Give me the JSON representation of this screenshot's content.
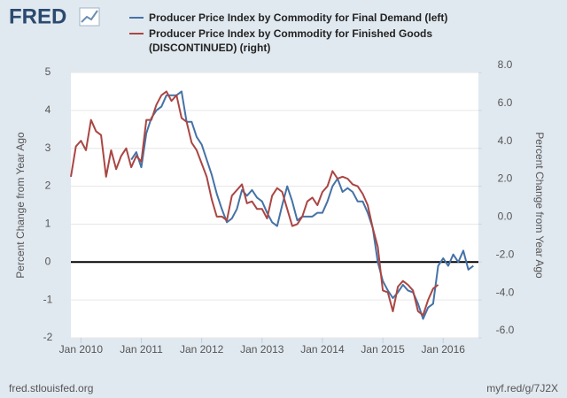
{
  "chart_data": {
    "type": "line",
    "logo": "FRED",
    "source": "fred.stlouisfed.org",
    "short_link": "myf.red/g/7J2X",
    "y_label": "Percent Change from Year Ago",
    "y2_label": "Percent Change from Year Ago",
    "x": [
      "2009-11",
      "2009-12",
      "2010-01",
      "2010-02",
      "2010-03",
      "2010-04",
      "2010-05",
      "2010-06",
      "2010-07",
      "2010-08",
      "2010-09",
      "2010-10",
      "2010-11",
      "2010-12",
      "2011-01",
      "2011-02",
      "2011-03",
      "2011-04",
      "2011-05",
      "2011-06",
      "2011-07",
      "2011-08",
      "2011-09",
      "2011-10",
      "2011-11",
      "2011-12",
      "2012-01",
      "2012-02",
      "2012-03",
      "2012-04",
      "2012-05",
      "2012-06",
      "2012-07",
      "2012-08",
      "2012-09",
      "2012-10",
      "2012-11",
      "2012-12",
      "2013-01",
      "2013-02",
      "2013-03",
      "2013-04",
      "2013-05",
      "2013-06",
      "2013-07",
      "2013-08",
      "2013-09",
      "2013-10",
      "2013-11",
      "2013-12",
      "2014-01",
      "2014-02",
      "2014-03",
      "2014-04",
      "2014-05",
      "2014-06",
      "2014-07",
      "2014-08",
      "2014-09",
      "2014-10",
      "2014-11",
      "2014-12",
      "2015-01",
      "2015-02",
      "2015-03",
      "2015-04",
      "2015-05",
      "2015-06",
      "2015-07",
      "2015-08",
      "2015-09",
      "2015-10",
      "2015-11",
      "2015-12",
      "2016-01",
      "2016-02",
      "2016-03",
      "2016-04",
      "2016-05",
      "2016-06",
      "2016-07"
    ],
    "xlim": [
      "2009-11",
      "2016-08"
    ],
    "xticks": [
      {
        "value": "2010-01",
        "label": "Jan 2010"
      },
      {
        "value": "2011-01",
        "label": "Jan 2011"
      },
      {
        "value": "2012-01",
        "label": "Jan 2012"
      },
      {
        "value": "2013-01",
        "label": "Jan 2013"
      },
      {
        "value": "2014-01",
        "label": "Jan 2014"
      },
      {
        "value": "2015-01",
        "label": "Jan 2015"
      },
      {
        "value": "2016-01",
        "label": "Jan 2016"
      }
    ],
    "ylim": [
      -2,
      5
    ],
    "yticks": [
      -2,
      -1,
      0,
      1,
      2,
      3,
      4,
      5
    ],
    "y2lim": [
      -6,
      8
    ],
    "y2ticks": [
      {
        "value": -6,
        "label": "-6.0"
      },
      {
        "value": -4,
        "label": "-4.0"
      },
      {
        "value": -2,
        "label": "-2.0"
      },
      {
        "value": 0,
        "label": "0.0"
      },
      {
        "value": 2,
        "label": "2.0"
      },
      {
        "value": 4,
        "label": "4.0"
      },
      {
        "value": 6,
        "label": "6.0"
      },
      {
        "value": 8,
        "label": "8.0"
      }
    ],
    "grid": true,
    "zero_line": true,
    "series": [
      {
        "name": "Producer Price Index by Commodity for Final Demand (left)",
        "color": "#4572a7",
        "values": [
          null,
          null,
          null,
          null,
          null,
          null,
          null,
          null,
          null,
          null,
          null,
          null,
          2.7,
          2.9,
          2.5,
          3.4,
          3.8,
          4.0,
          4.1,
          4.4,
          4.4,
          4.4,
          4.5,
          3.7,
          3.7,
          3.3,
          3.1,
          2.7,
          2.3,
          1.8,
          1.4,
          1.05,
          1.15,
          1.4,
          1.9,
          1.75,
          1.9,
          1.7,
          1.6,
          1.3,
          1.05,
          0.95,
          1.5,
          2.0,
          1.6,
          1.1,
          1.2,
          1.2,
          1.2,
          1.3,
          1.3,
          1.6,
          2.0,
          2.2,
          1.85,
          1.95,
          1.85,
          1.6,
          1.6,
          1.3,
          0.9,
          0.0,
          -0.5,
          -0.75,
          -0.95,
          -0.8,
          -0.6,
          -0.75,
          -0.8,
          -1.1,
          -1.5,
          -1.2,
          -1.1,
          -0.1,
          0.1,
          -0.1,
          0.2,
          0.0,
          0.3,
          -0.2,
          -0.1
        ]
      },
      {
        "name": "Producer Price Index by Commodity for Finished Goods (DISCONTINUED) (right)",
        "color": "#aa4643",
        "axis": "y2",
        "values": [
          2.5,
          4.1,
          4.4,
          3.9,
          5.5,
          4.9,
          4.7,
          2.5,
          3.9,
          2.9,
          3.6,
          4.0,
          3.0,
          3.6,
          3.3,
          5.5,
          5.5,
          6.3,
          6.8,
          7.0,
          6.5,
          6.8,
          5.6,
          5.4,
          4.3,
          3.9,
          3.2,
          2.5,
          1.3,
          0.4,
          0.4,
          0.2,
          1.5,
          1.8,
          2.1,
          1.1,
          1.2,
          0.8,
          0.8,
          0.3,
          1.5,
          1.9,
          1.7,
          0.8,
          -0.1,
          0.0,
          0.4,
          1.2,
          1.4,
          1.0,
          1.7,
          2.0,
          2.8,
          2.4,
          2.5,
          2.4,
          2.1,
          2.0,
          1.6,
          1.0,
          -0.2,
          -1.2,
          -3.5,
          -3.6,
          -4.6,
          -3.3,
          -3.0,
          -3.2,
          -3.5,
          -4.6,
          -4.8,
          -4.0,
          -3.4,
          -3.2,
          null,
          null,
          null,
          null,
          null,
          null,
          null
        ]
      }
    ]
  }
}
